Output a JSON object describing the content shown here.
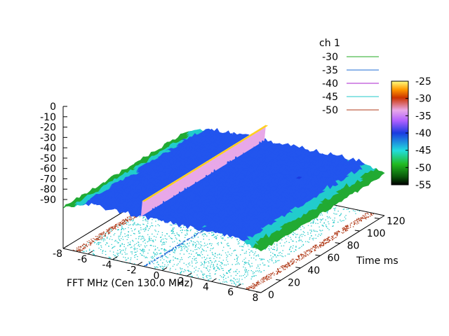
{
  "chart_data": {
    "type": "heatmap",
    "title": "",
    "xlabel": "FFT MHz (Cen 130.0 MHz)",
    "ylabel": "Time ms",
    "zlabel": "",
    "x_ticks": [
      "-8",
      "-6",
      "-4",
      "-2",
      "0",
      "2",
      "4",
      "6",
      "8"
    ],
    "y_ticks": [
      "0",
      "20",
      "40",
      "60",
      "80",
      "100",
      "120"
    ],
    "z_ticks": [
      "0",
      "-10",
      "-20",
      "-30",
      "-40",
      "-50",
      "-60",
      "-70",
      "-80",
      "-90"
    ],
    "xlim": [
      -8,
      8
    ],
    "ylim": [
      0,
      125
    ],
    "zlim": [
      -90,
      0
    ],
    "legend": {
      "title": "ch 1",
      "placement": "top-right",
      "entries": [
        {
          "label": "-30",
          "color": "#22aa22"
        },
        {
          "label": "-35",
          "color": "#1e6bd6"
        },
        {
          "label": "-40",
          "color": "#aa22cc"
        },
        {
          "label": "-45",
          "color": "#22c8c8"
        },
        {
          "label": "-50",
          "color": "#b03a18"
        }
      ]
    },
    "colorbar": {
      "ticks": [
        "-25",
        "-30",
        "-35",
        "-40",
        "-45",
        "-50",
        "-55"
      ],
      "range": [
        -55,
        -25
      ]
    },
    "surface": {
      "noise_floor_db": -42,
      "signal": {
        "x_mhz": -1.5,
        "level_db": -27
      },
      "edge_rolloff_db": -50
    },
    "contours": {
      "bands": [
        {
          "level": "-45",
          "color": "#22c8c8",
          "region": "main-band"
        },
        {
          "level": "-50",
          "color": "#b03a18",
          "region": "band-edges"
        },
        {
          "level": "-35",
          "color": "#1e6bd6",
          "region": "signal-line"
        }
      ]
    }
  }
}
